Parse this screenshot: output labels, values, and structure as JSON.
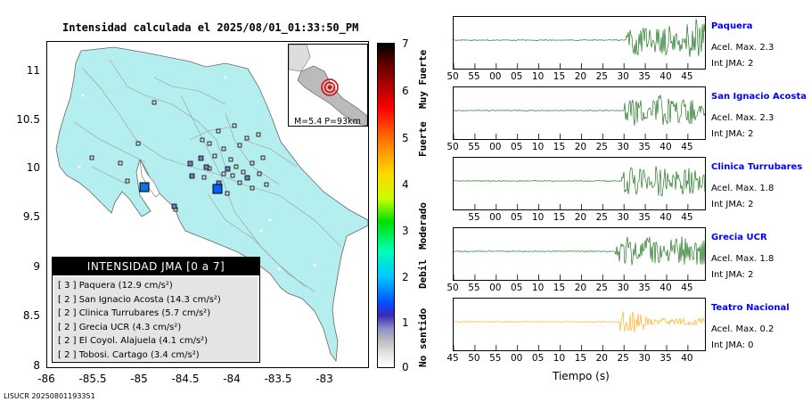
{
  "title": "Intensidad calculada el 2025/08/01_01:33:50_PM",
  "map": {
    "y_ticks": [
      "11",
      "10.5",
      "10",
      "9.5",
      "9",
      "8.5",
      "8"
    ],
    "x_ticks": [
      "-86",
      "-85.5",
      "-85",
      "-84.5",
      "-84",
      "-83.5",
      "-83"
    ],
    "lon_range": [
      -86,
      -82.55
    ],
    "lat_range": [
      8,
      11.35
    ],
    "epicenter": {
      "lon": -84.15,
      "lat": 9.8
    },
    "inset_caption": "M=5.4 P=93km",
    "legend": {
      "title": "INTENSIDAD JMA [0 a 7]",
      "rows": [
        "[ 3 ]  Paquera (12.9 cm/s²)",
        "[ 2 ]  San Ignacio Acosta (14.3 cm/s²)",
        "[ 2 ]  Clinica Turrubares (5.7 cm/s²)",
        "[ 2 ]  Grecia UCR (4.3 cm/s²)",
        "[ 2 ]  El Coyol. Alajuela (4.1 cm/s²)",
        "[ 2 ]  Tobosi. Cartago (3.4 cm/s²)"
      ]
    }
  },
  "colorbar": {
    "ticks": [
      "7",
      "6",
      "5",
      "4",
      "3",
      "2",
      "1",
      "0"
    ],
    "words": [
      "Muy Fuerte",
      "Fuerte",
      "Moderado",
      "Debil",
      "No sentido"
    ]
  },
  "footer": "LISUCR 20250801193351",
  "x_axis_label": "Tiempo (s)",
  "stations": [
    {
      "name": "Paquera",
      "accel": "Acel. Max. 2.3",
      "int": "Int JMA: 2",
      "color": "#006400",
      "ticks": [
        "50",
        "55",
        "00",
        "05",
        "10",
        "15",
        "20",
        "25",
        "30",
        "35",
        "40",
        "45"
      ],
      "tick_start": 50,
      "onset_s": 30.5
    },
    {
      "name": "San Ignacio Acosta",
      "accel": "Acel. Max. 2.3",
      "int": "Int JMA: 2",
      "color": "#006400",
      "ticks": [
        "50",
        "55",
        "00",
        "05",
        "10",
        "15",
        "20",
        "25",
        "30",
        "35",
        "40",
        "45"
      ],
      "tick_start": 50,
      "onset_s": 30
    },
    {
      "name": "Clinica Turrubares",
      "accel": "Acel. Max. 1.8",
      "int": "Int JMA: 2",
      "color": "#006400",
      "ticks": [
        "55",
        "00",
        "05",
        "10",
        "15",
        "20",
        "25",
        "30",
        "35",
        "40",
        "45"
      ],
      "tick_start": 50,
      "onset_s": 29.5
    },
    {
      "name": "Grecia UCR",
      "accel": "Acel. Max. 1.8",
      "int": "Int JMA: 2",
      "color": "#006400",
      "ticks": [
        "50",
        "55",
        "00",
        "05",
        "10",
        "15",
        "20",
        "25",
        "30",
        "35",
        "40",
        "45"
      ],
      "tick_start": 50,
      "onset_s": 28
    },
    {
      "name": "Teatro Nacional",
      "accel": "Acel. Max. 0.2",
      "int": "Int JMA: 0",
      "color": "#ffa500",
      "ticks": [
        "45",
        "50",
        "55",
        "00",
        "05",
        "10",
        "15",
        "20",
        "25",
        "30",
        "35",
        "40"
      ],
      "tick_start": 45,
      "onset_s": 29
    }
  ]
}
